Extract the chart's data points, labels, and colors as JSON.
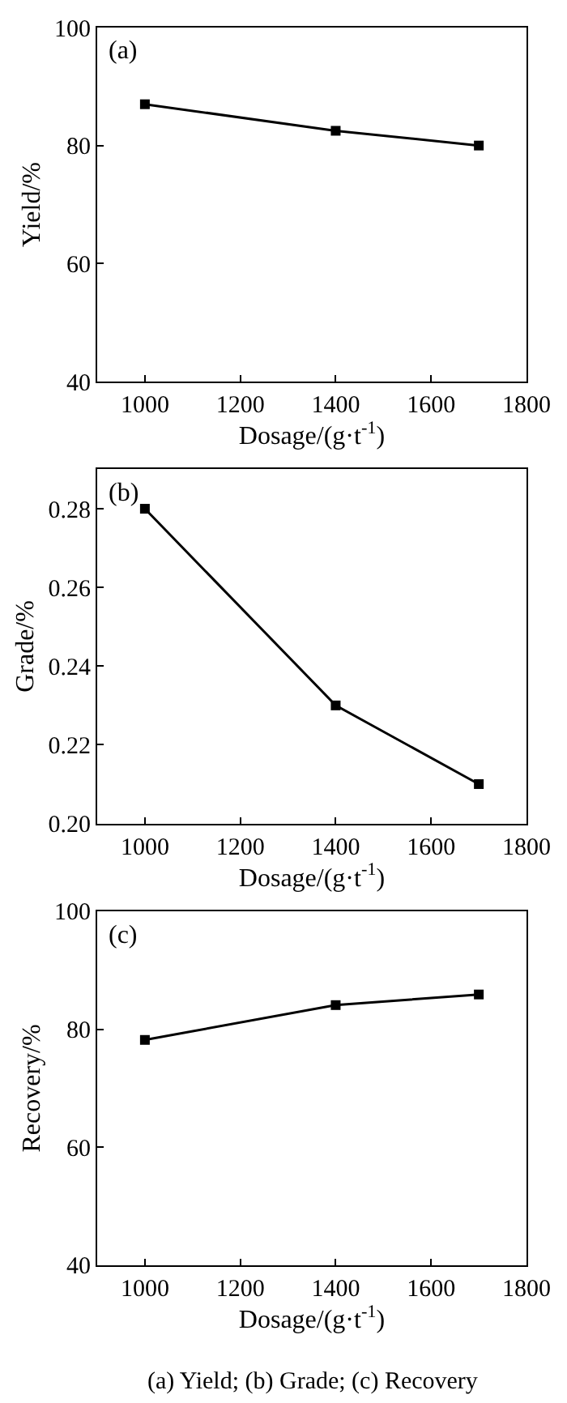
{
  "chart_data": [
    {
      "type": "line",
      "title": "(a)",
      "xlabel": "Dosage/(g·t$^{-1}$)",
      "ylabel": "Yield/%",
      "x": [
        1000,
        1400,
        1700
      ],
      "series": [
        {
          "color": "#000000",
          "values": [
            87,
            82.5,
            80
          ]
        }
      ],
      "xlim": [
        900,
        1800
      ],
      "xticks": [
        1000,
        1200,
        1400,
        1600,
        1800
      ],
      "ylim": [
        40,
        100
      ],
      "yticks": [
        40,
        60,
        80,
        100
      ],
      "marker": "square",
      "line_style": "solid"
    },
    {
      "type": "line",
      "title": "(b)",
      "xlabel": "Dosage/(g·t$^{-1}$)",
      "ylabel": "Grade/%",
      "x": [
        1000,
        1400,
        1700
      ],
      "series": [
        {
          "color": "#000000",
          "values": [
            0.28,
            0.23,
            0.21
          ]
        }
      ],
      "xlim": [
        900,
        1800
      ],
      "xticks": [
        1000,
        1200,
        1400,
        1600,
        1800
      ],
      "ylim": [
        0.2,
        0.29
      ],
      "yticks": [
        {
          "value": 0.2,
          "label": "0.20"
        },
        0.22,
        0.24,
        0.26,
        0.28
      ],
      "marker": "square",
      "line_style": "solid"
    },
    {
      "type": "line",
      "title": "(c)",
      "xlabel": "Dosage/(g·t$^{-1}$)",
      "ylabel": "Recovery/%",
      "x": [
        1000,
        1400,
        1700
      ],
      "series": [
        {
          "color": "#000000",
          "values": [
            78.2,
            84.1,
            85.9
          ]
        }
      ],
      "xlim": [
        900,
        1800
      ],
      "xticks": [
        1000,
        1200,
        1400,
        1600,
        1800
      ],
      "ylim": [
        40,
        100
      ],
      "yticks": [
        40,
        60,
        80,
        100
      ],
      "marker": "square",
      "line_style": "solid",
      "annotations": [
        "(a) Yield; (b) Grade; (c) Recovery"
      ]
    }
  ]
}
